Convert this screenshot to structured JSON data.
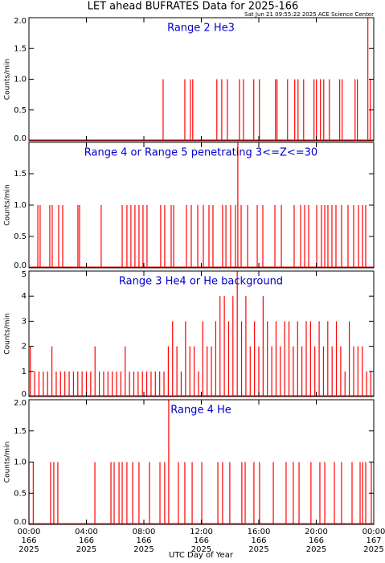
{
  "title": "LET ahead BUFRATES Data for 2025-166",
  "timestamp": "Sat Jun 21 09:55:22 2025 ACE Science Center",
  "x_label": "UTC Day of Year",
  "chart_data": [
    {
      "type": "spike",
      "subtitle": "Range 2 He3",
      "y_label": "Counts/min",
      "color": "#ff0000",
      "xlim": [
        0,
        24
      ],
      "ylim": [
        0,
        2
      ],
      "yticks": [
        {
          "value": 0,
          "label": "0.0"
        },
        {
          "value": 0.5,
          "label": "0.5"
        },
        {
          "value": 1,
          "label": "1.0"
        },
        {
          "value": 1.5,
          "label": "1.5"
        },
        {
          "value": 2,
          "label": "2.0"
        }
      ],
      "x": [
        9.34,
        10.85,
        11.24,
        11.4,
        13.08,
        13.42,
        13.81,
        14.65,
        14.93,
        15.65,
        16.04,
        17.16,
        17.27,
        18.0,
        18.5,
        18.73,
        19.12,
        19.84,
        20.01,
        20.29,
        20.52,
        20.91,
        21.63,
        21.8,
        22.7,
        22.86,
        23.59,
        23.76
      ],
      "values": [
        1,
        1,
        1,
        1,
        1,
        1,
        1,
        1,
        1,
        1,
        1,
        1,
        1,
        1,
        1,
        1,
        1,
        1,
        1,
        1,
        1,
        1,
        1,
        1,
        1,
        1,
        2,
        1
      ]
    },
    {
      "type": "spike",
      "subtitle": "Range 4 or Range 5 penetrating 3<=Z<=30",
      "y_label": "Counts/min",
      "color": "#ff0000",
      "xlim": [
        0,
        24
      ],
      "ylim": [
        0,
        2
      ],
      "yticks": [
        {
          "value": 0,
          "label": "0.0"
        },
        {
          "value": 0.5,
          "label": "0.5"
        },
        {
          "value": 1,
          "label": "1.0"
        },
        {
          "value": 1.5,
          "label": "1.5"
        }
      ],
      "x": [
        0.62,
        0.78,
        1.45,
        1.62,
        2.07,
        2.35,
        3.41,
        3.52,
        5.03,
        6.49,
        6.82,
        7.1,
        7.38,
        7.66,
        7.94,
        8.22,
        9.17,
        9.45,
        9.9,
        10.07,
        10.96,
        11.3,
        11.75,
        12.14,
        12.53,
        12.81,
        13.48,
        13.71,
        14.04,
        14.38,
        14.54,
        14.77,
        15.22,
        15.89,
        16.28,
        17.12,
        17.57,
        18.46,
        18.91,
        19.19,
        19.47,
        20.03,
        20.36,
        20.59,
        20.81,
        21.09,
        21.37,
        21.76,
        22.21,
        22.6,
        22.94,
        23.22,
        23.44
      ],
      "values": [
        1,
        1,
        1,
        1,
        1,
        1,
        1,
        1,
        1,
        1,
        1,
        1,
        1,
        1,
        1,
        1,
        1,
        1,
        1,
        1,
        1,
        1,
        1,
        1,
        1,
        1,
        1,
        1,
        1,
        1,
        2,
        1,
        1,
        1,
        1,
        1,
        1,
        1,
        1,
        1,
        1,
        1,
        1,
        1,
        1,
        1,
        1,
        1,
        1,
        1,
        1,
        1,
        1
      ]
    },
    {
      "type": "spike",
      "subtitle": "Range 3 He4 or He background",
      "y_label": "Counts/min",
      "color": "#ff0000",
      "xlim": [
        0,
        24
      ],
      "ylim": [
        0,
        5
      ],
      "yticks": [
        0,
        1,
        2,
        3,
        4,
        5
      ],
      "x": [
        0.1,
        0.4,
        0.7,
        1.0,
        1.3,
        1.6,
        1.9,
        2.2,
        2.5,
        2.8,
        3.1,
        3.4,
        3.7,
        4.0,
        4.3,
        4.6,
        4.9,
        5.2,
        5.5,
        5.8,
        6.1,
        6.4,
        6.7,
        7.0,
        7.3,
        7.6,
        7.9,
        8.2,
        8.5,
        8.8,
        9.1,
        9.4,
        9.7,
        10.0,
        10.3,
        10.6,
        10.9,
        11.2,
        11.5,
        11.8,
        12.1,
        12.4,
        12.7,
        13.0,
        13.3,
        13.6,
        13.9,
        14.2,
        14.5,
        14.8,
        15.1,
        15.4,
        15.7,
        16.0,
        16.3,
        16.6,
        16.9,
        17.2,
        17.5,
        17.8,
        18.1,
        18.4,
        18.7,
        19.0,
        19.3,
        19.6,
        19.9,
        20.2,
        20.5,
        20.8,
        21.1,
        21.4,
        21.7,
        22.0,
        22.3,
        22.6,
        22.9,
        23.2,
        23.5,
        23.8
      ],
      "values": [
        2,
        1,
        1,
        1,
        1,
        2,
        1,
        1,
        1,
        1,
        1,
        1,
        1,
        1,
        1,
        2,
        1,
        1,
        1,
        1,
        1,
        1,
        2,
        1,
        1,
        1,
        1,
        1,
        1,
        1,
        1,
        1,
        2,
        3,
        2,
        1,
        3,
        2,
        2,
        1,
        3,
        2,
        2,
        3,
        4,
        4,
        3,
        4,
        5,
        3,
        4,
        2,
        3,
        2,
        4,
        3,
        2,
        3,
        2,
        3,
        3,
        2,
        3,
        2,
        3,
        3,
        2,
        3,
        2,
        3,
        2,
        3,
        2,
        1,
        3,
        2,
        2,
        2,
        1,
        1
      ]
    },
    {
      "type": "spike",
      "subtitle": "Range 4 He",
      "y_label": "Counts/min",
      "color": "#ff0000",
      "xlim": [
        0,
        24
      ],
      "ylim": [
        0,
        2
      ],
      "yticks": [
        {
          "value": 0,
          "label": "0.0"
        },
        {
          "value": 0.5,
          "label": "0.5"
        },
        {
          "value": 1,
          "label": "1.0"
        },
        {
          "value": 1.5,
          "label": "1.5"
        },
        {
          "value": 2,
          "label": "2.0"
        }
      ],
      "xticks": [
        {
          "value": 0,
          "label": "00:00"
        },
        {
          "value": 4,
          "label": "04:00"
        },
        {
          "value": 8,
          "label": "08:00"
        },
        {
          "value": 12,
          "label": "12:00"
        },
        {
          "value": 16,
          "label": "16:00"
        },
        {
          "value": 20,
          "label": "20:00"
        },
        {
          "value": 24,
          "label": "00:00"
        }
      ],
      "xtick_days": [
        "166",
        "166",
        "166",
        "166",
        "166",
        "166",
        "167"
      ],
      "xtick_years": [
        "2025",
        "2025",
        "2025",
        "2025",
        "2025",
        "2025",
        "2025"
      ],
      "x": [
        0.0,
        0.3,
        1.51,
        1.73,
        2.01,
        4.59,
        5.71,
        5.93,
        6.27,
        6.49,
        6.82,
        7.22,
        7.66,
        8.39,
        9.12,
        9.45,
        9.73,
        10.4,
        10.85,
        11.36,
        12.03,
        13.15,
        13.48,
        13.98,
        14.82,
        15.05,
        15.66,
        16.05,
        17.01,
        17.9,
        18.4,
        18.8,
        19.63,
        20.25,
        20.59,
        21.26,
        21.76,
        22.49,
        23.05,
        23.22,
        23.44,
        23.83
      ],
      "values": [
        1,
        1,
        1,
        1,
        1,
        1,
        1,
        1,
        1,
        1,
        1,
        1,
        1,
        1,
        1,
        1,
        2,
        1,
        1,
        1,
        1,
        1,
        1,
        1,
        1,
        1,
        1,
        1,
        1,
        1,
        1,
        1,
        1,
        1,
        1,
        1,
        1,
        1,
        1,
        1,
        1,
        1
      ]
    }
  ]
}
